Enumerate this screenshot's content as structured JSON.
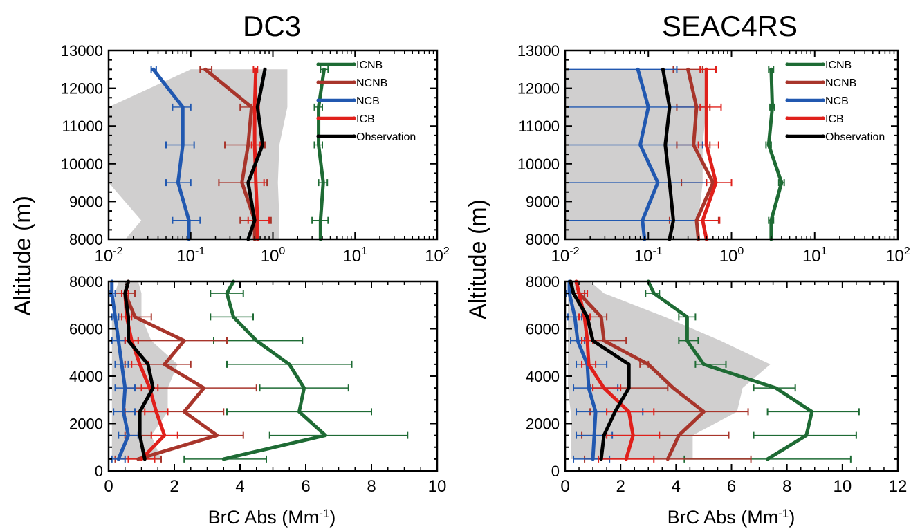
{
  "panel_titles": [
    "DC3",
    "SEAC4RS"
  ],
  "ylabel": "Altitude (m)",
  "xlabel": "BrC Abs (Mm",
  "xlabel_sup": "-1",
  "xlabel_end": ")",
  "legend": [
    {
      "name": "ICNB",
      "color": "#1e6b34"
    },
    {
      "name": "NCNB",
      "color": "#a8352b"
    },
    {
      "name": "NCB",
      "color": "#2158b0"
    },
    {
      "name": "ICB",
      "color": "#e0201b"
    },
    {
      "name": "Observation",
      "color": "#000000"
    }
  ],
  "chart_data": [
    {
      "type": "line",
      "id": "dc3_top",
      "campaign": "DC3",
      "xscale": "log",
      "xlim": [
        0.01,
        100
      ],
      "ylim": [
        8000,
        13000
      ],
      "xticks": [
        0.01,
        0.1,
        1,
        10,
        100
      ],
      "xticklabels": [
        [
          "10",
          "-2"
        ],
        [
          "10",
          "-1"
        ],
        [
          "10",
          "0"
        ],
        [
          "10",
          "1"
        ],
        [
          "10",
          "2"
        ]
      ],
      "yticks": [
        8000,
        9000,
        10000,
        11000,
        12000,
        13000
      ],
      "yticklabels": [
        "8000",
        "9000",
        "10000",
        "11000",
        "12000",
        "13000"
      ],
      "legend": true,
      "y": [
        8000,
        8500,
        9500,
        10500,
        11500,
        12500
      ],
      "shade_low": [
        0.016,
        0.025,
        0.01,
        0.01,
        0.01,
        0.1
      ],
      "shade_high": [
        1.2,
        1.2,
        1.15,
        1.2,
        1.5,
        1.5
      ],
      "series": [
        {
          "name": "ICNB",
          "x": [
            3.8,
            3.8,
            4.1,
            3.6,
            3.6,
            4.2
          ],
          "err_low": [
            null,
            3.0,
            3.6,
            3.2,
            3.2,
            3.8
          ],
          "err_high": [
            null,
            4.7,
            4.6,
            4.0,
            4.0,
            4.7
          ]
        },
        {
          "name": "NCNB",
          "x": [
            0.6,
            0.6,
            0.42,
            0.5,
            0.55,
            0.15
          ],
          "err_low": [
            null,
            0.4,
            0.22,
            0.26,
            0.4,
            0.13
          ],
          "err_high": [
            null,
            0.95,
            0.85,
            0.8,
            0.65,
            0.18
          ]
        },
        {
          "name": "NCB",
          "x": [
            0.095,
            0.095,
            0.07,
            0.08,
            0.08,
            0.035
          ],
          "err_low": [
            null,
            0.06,
            0.05,
            0.05,
            0.06,
            0.033
          ],
          "err_high": [
            null,
            0.13,
            0.1,
            0.11,
            0.1,
            0.038
          ]
        },
        {
          "name": "ICB",
          "x": [
            0.65,
            0.65,
            0.62,
            0.6,
            0.6,
            0.62
          ],
          "err_low": [
            null,
            0.5,
            0.5,
            0.55,
            0.55,
            0.58
          ],
          "err_high": [
            null,
            0.9,
            0.78,
            0.7,
            0.68,
            0.65
          ]
        },
        {
          "name": "Observation",
          "x": [
            0.5,
            0.6,
            0.5,
            0.75,
            0.65,
            0.8
          ]
        }
      ]
    },
    {
      "type": "line",
      "id": "seac4rs_top",
      "campaign": "SEAC4RS",
      "xscale": "log",
      "xlim": [
        0.01,
        100
      ],
      "ylim": [
        8000,
        13000
      ],
      "xticks": [
        0.01,
        0.1,
        1,
        10,
        100
      ],
      "xticklabels": [
        [
          "10",
          "-2"
        ],
        [
          "10",
          "-1"
        ],
        [
          "10",
          "0"
        ],
        [
          "10",
          "1"
        ],
        [
          "10",
          "2"
        ]
      ],
      "yticks": [
        8000,
        9000,
        10000,
        11000,
        12000,
        13000
      ],
      "yticklabels": [
        "8000",
        "9000",
        "10000",
        "11000",
        "12000",
        "13000"
      ],
      "legend": true,
      "y": [
        8000,
        8500,
        9500,
        10500,
        11500,
        12500
      ],
      "shade_low": [
        0.01,
        0.01,
        0.01,
        0.01,
        0.01,
        0.01
      ],
      "shade_high": [
        0.4,
        0.4,
        0.45,
        0.45,
        0.5,
        0.5
      ],
      "series": [
        {
          "name": "ICNB",
          "x": [
            3.0,
            3.0,
            4.0,
            2.8,
            3.1,
            3.0
          ],
          "err_low": [
            null,
            2.8,
            3.7,
            2.6,
            2.9,
            2.8
          ],
          "err_high": [
            null,
            3.2,
            4.3,
            3.0,
            3.3,
            3.2
          ]
        },
        {
          "name": "NCNB",
          "x": [
            0.4,
            0.38,
            0.6,
            0.35,
            0.38,
            0.3
          ],
          "err_low": [
            null,
            0.18,
            0.25,
            0.22,
            0.22,
            0.2
          ],
          "err_high": [
            null,
            0.7,
            1.0,
            0.55,
            0.55,
            0.45
          ]
        },
        {
          "name": "NCB",
          "x": [
            0.09,
            0.085,
            0.13,
            0.08,
            0.1,
            0.075
          ],
          "err_low": [
            null,
            0.01,
            0.01,
            0.01,
            0.01,
            0.01
          ],
          "err_high": [
            null,
            0.38,
            0.5,
            0.45,
            0.5,
            0.22
          ]
        },
        {
          "name": "ICB",
          "x": [
            0.5,
            0.45,
            0.65,
            0.5,
            0.5,
            0.5
          ],
          "err_low": [
            null,
            0.38,
            0.5,
            0.4,
            0.42,
            0.42
          ],
          "err_high": [
            null,
            0.72,
            1.0,
            0.7,
            0.75,
            0.65
          ]
        },
        {
          "name": "Observation",
          "x": [
            0.18,
            0.2,
            0.18,
            0.16,
            0.18,
            0.15
          ]
        }
      ]
    },
    {
      "type": "line",
      "id": "dc3_bottom",
      "campaign": "DC3",
      "xscale": "linear",
      "xlim": [
        0,
        10
      ],
      "ylim": [
        0,
        8000
      ],
      "xticks": [
        0,
        2,
        4,
        6,
        8,
        10
      ],
      "xticklabels": [
        "0",
        "2",
        "4",
        "6",
        "8",
        "10"
      ],
      "yticks": [
        0,
        2000,
        4000,
        6000,
        8000
      ],
      "yticklabels": [
        "0",
        "2000",
        "4000",
        "6000",
        "8000"
      ],
      "legend": false,
      "y": [
        500,
        1500,
        2500,
        3500,
        4500,
        5500,
        6500,
        7500,
        8000
      ],
      "shade_low": [
        0.1,
        0.1,
        0.1,
        0.1,
        0.1,
        0.1,
        0.1,
        0.2,
        0.3
      ],
      "shade_high": [
        1.6,
        1.3,
        1.8,
        1.8,
        2.1,
        1.3,
        1.0,
        1.0,
        0.9
      ],
      "series": [
        {
          "name": "ICNB",
          "x": [
            3.5,
            6.6,
            5.8,
            5.95,
            5.5,
            4.5,
            3.8,
            3.6,
            3.8
          ],
          "err_low": [
            2.3,
            4.9,
            3.6,
            4.6,
            3.6,
            3.2,
            3.1,
            3.1,
            null
          ],
          "err_high": [
            4.8,
            9.1,
            8.0,
            7.3,
            7.4,
            5.9,
            4.4,
            4.1,
            null
          ]
        },
        {
          "name": "NCNB",
          "x": [
            0.9,
            3.3,
            2.3,
            2.9,
            1.7,
            2.3,
            0.8,
            0.5,
            0.6
          ],
          "err_low": [
            0.2,
            0.5,
            0.5,
            0.5,
            0.5,
            0.7,
            0.3,
            0.2,
            null
          ],
          "err_high": [
            1.6,
            4.1,
            3.5,
            4.5,
            2.5,
            3.6,
            1.3,
            0.8,
            null
          ]
        },
        {
          "name": "NCB",
          "x": [
            0.3,
            0.6,
            0.45,
            0.5,
            0.4,
            0.3,
            0.2,
            0.1,
            0.1
          ],
          "err_low": [
            0.1,
            0.3,
            0.15,
            0.2,
            0.2,
            0.1,
            0.1,
            0.05,
            null
          ],
          "err_high": [
            0.5,
            0.9,
            0.8,
            0.8,
            0.6,
            0.5,
            0.3,
            0.2,
            null
          ]
        },
        {
          "name": "ICB",
          "x": [
            1.0,
            1.7,
            1.45,
            1.25,
            0.95,
            0.7,
            0.55,
            0.5,
            0.6
          ],
          "err_low": [
            0.6,
            1.3,
            1.1,
            1.0,
            0.7,
            0.5,
            0.4,
            0.4,
            null
          ],
          "err_high": [
            1.4,
            2.1,
            1.8,
            1.5,
            1.2,
            0.9,
            0.7,
            0.6,
            null
          ]
        },
        {
          "name": "Observation",
          "x": [
            1.1,
            0.95,
            0.95,
            1.35,
            1.2,
            0.6,
            0.6,
            0.5,
            0.6
          ]
        }
      ]
    },
    {
      "type": "line",
      "id": "seac4rs_bottom",
      "campaign": "SEAC4RS",
      "xscale": "linear",
      "xlim": [
        0,
        12
      ],
      "ylim": [
        0,
        8000
      ],
      "xticks": [
        0,
        2,
        4,
        6,
        8,
        10,
        12
      ],
      "xticklabels": [
        "0",
        "2",
        "4",
        "6",
        "8",
        "10",
        "12"
      ],
      "yticks": [
        0,
        2000,
        4000,
        6000,
        8000
      ],
      "yticklabels": [
        "0",
        "2000",
        "4000",
        "6000",
        "8000"
      ],
      "legend": false,
      "y": [
        500,
        1500,
        2500,
        3500,
        4500,
        5500,
        6500,
        7500,
        8000
      ],
      "shade_low": [
        0.2,
        0.2,
        0.2,
        0.1,
        0.1,
        0.1,
        0.1,
        0.1,
        0.1
      ],
      "shade_high": [
        4.6,
        4.6,
        6.2,
        6.4,
        7.4,
        5.6,
        3.6,
        1.4,
        0.9
      ],
      "series": [
        {
          "name": "ICNB",
          "x": [
            7.3,
            8.7,
            8.9,
            7.6,
            5.0,
            4.4,
            4.4,
            3.2,
            3.0
          ],
          "err_low": [
            4.3,
            6.8,
            7.3,
            6.8,
            4.7,
            4.1,
            4.1,
            2.9,
            null
          ],
          "err_high": [
            10.3,
            10.5,
            10.6,
            8.3,
            5.8,
            4.8,
            4.7,
            3.4,
            null
          ]
        },
        {
          "name": "NCNB",
          "x": [
            3.7,
            4.1,
            5.0,
            3.9,
            3.0,
            1.4,
            1.3,
            0.5,
            0.4
          ],
          "err_low": [
            0.7,
            0.6,
            0.9,
            0.9,
            2.7,
            0.8,
            0.7,
            0.3,
            null
          ],
          "err_high": [
            6.7,
            5.9,
            6.6,
            3.7,
            3.0,
            2.2,
            1.5,
            0.7,
            null
          ]
        },
        {
          "name": "NCB",
          "x": [
            1.0,
            1.05,
            1.1,
            0.85,
            0.8,
            0.45,
            0.35,
            0.15,
            0.15
          ],
          "err_low": [
            0.3,
            0.4,
            0.4,
            0.3,
            0.4,
            0.2,
            0.1,
            0.05,
            null
          ],
          "err_high": [
            1.6,
            1.7,
            2.8,
            1.9,
            1.5,
            0.7,
            0.6,
            0.3,
            null
          ]
        },
        {
          "name": "ICB",
          "x": [
            2.2,
            2.45,
            2.3,
            1.4,
            0.85,
            0.8,
            0.7,
            0.5,
            0.4
          ],
          "err_low": [
            1.2,
            1.5,
            1.5,
            1.0,
            0.6,
            0.6,
            0.5,
            0.3,
            null
          ],
          "err_high": [
            3.2,
            3.4,
            3.2,
            2.0,
            1.1,
            1.0,
            0.9,
            0.8,
            null
          ]
        },
        {
          "name": "Observation",
          "x": [
            1.3,
            1.4,
            1.8,
            2.3,
            2.3,
            1.0,
            0.8,
            0.3,
            0.2
          ]
        }
      ]
    }
  ]
}
